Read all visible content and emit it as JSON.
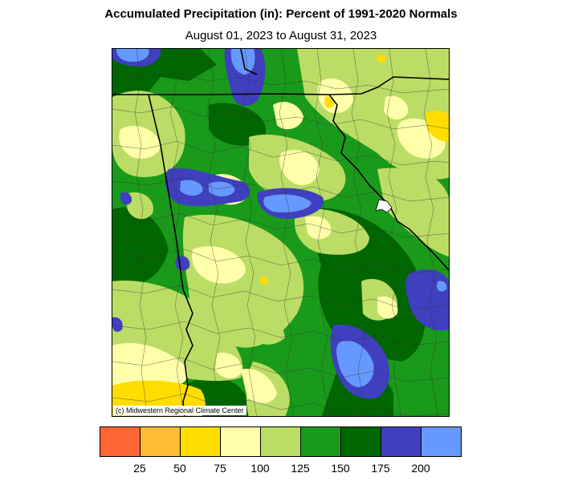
{
  "header": {
    "title": "Accumulated Precipitation (in): Percent of 1991-2020 Normals",
    "subtitle": "August 01, 2023 to August 31, 2023"
  },
  "map": {
    "credit": "(c) Midwestern Regional Climate Center",
    "colors": {
      "below_25": "#ff6633",
      "25_50": "#ffbb33",
      "50_75": "#ffdd00",
      "75_100": "#ffffaa",
      "100_125": "#bbdd66",
      "125_150": "#1a9a1a",
      "150_175": "#006600",
      "175_200": "#3f3fbf",
      "above_200": "#6699ff"
    }
  },
  "legend": {
    "colors": [
      "#ff6633",
      "#ffbb33",
      "#ffdd00",
      "#ffffaa",
      "#bbdd66",
      "#1a9a1a",
      "#006600",
      "#3f3fbf",
      "#6699ff"
    ],
    "ticks": [
      "25",
      "50",
      "75",
      "100",
      "125",
      "150",
      "175",
      "200"
    ]
  }
}
